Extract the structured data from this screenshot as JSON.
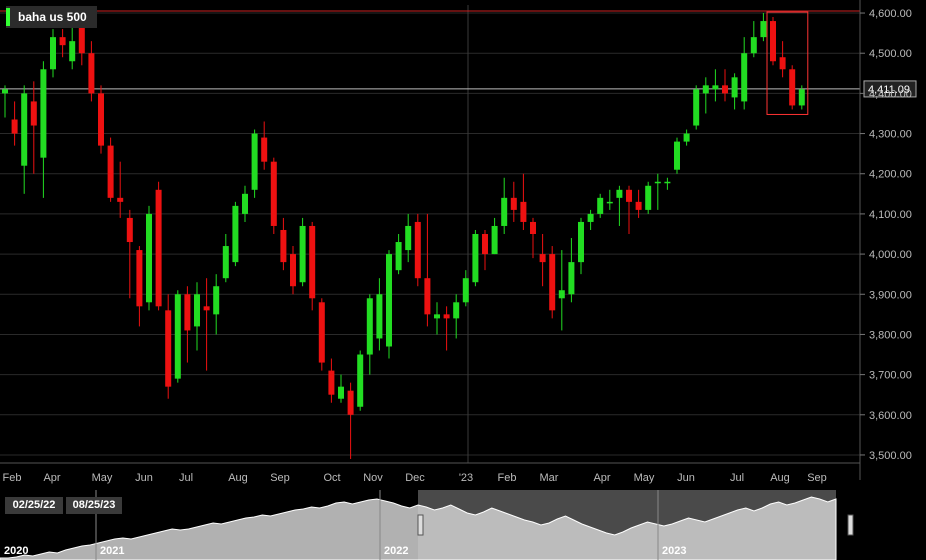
{
  "app": {
    "ticker": "baha us 500",
    "current_price_label": "4,411.09",
    "range_start": "02/25/22",
    "range_end": "08/25/23"
  },
  "colors": {
    "background": "#000000",
    "up": "#22dd22",
    "down": "#ee1111",
    "grid": "#2a2a2a",
    "axis_text": "#bbbbbb",
    "highlight_box": "#ff3333",
    "price_line_top": "#cc2222",
    "price_line_current": "#bbbbbb"
  },
  "chart_data": {
    "type": "candlestick",
    "ylim": [
      3480,
      4620
    ],
    "y_ticks": [
      "3,500.00",
      "3,600.00",
      "3,700.00",
      "3,800.00",
      "3,900.00",
      "4,000.00",
      "4,100.00",
      "4,200.00",
      "4,300.00",
      "4,400.00",
      "4,500.00",
      "4,600.00"
    ],
    "x_labels": [
      "Feb",
      "Apr",
      "May",
      "Jun",
      "Jul",
      "Aug",
      "Sep",
      "Oct",
      "Nov",
      "Dec",
      "'23",
      "Feb",
      "Mar",
      "Apr",
      "May",
      "Jun",
      "Jul",
      "Aug",
      "Sep"
    ],
    "top_line": 4605,
    "current": 4411.09,
    "highlight_range": [
      -4,
      -1
    ],
    "candles": [
      [
        4400,
        4410,
        4340,
        4420
      ],
      [
        4335,
        4300,
        4270,
        4380
      ],
      [
        4220,
        4400,
        4150,
        4420
      ],
      [
        4380,
        4320,
        4200,
        4430
      ],
      [
        4240,
        4460,
        4140,
        4480
      ],
      [
        4460,
        4540,
        4440,
        4560
      ],
      [
        4540,
        4520,
        4490,
        4560
      ],
      [
        4480,
        4530,
        4460,
        4590
      ],
      [
        4570,
        4500,
        4470,
        4590
      ],
      [
        4500,
        4400,
        4380,
        4530
      ],
      [
        4400,
        4270,
        4250,
        4420
      ],
      [
        4270,
        4140,
        4130,
        4290
      ],
      [
        4140,
        4130,
        4090,
        4230
      ],
      [
        4090,
        4030,
        3890,
        4110
      ],
      [
        4010,
        3870,
        3820,
        4020
      ],
      [
        3880,
        4100,
        3860,
        4120
      ],
      [
        4160,
        3870,
        3860,
        4180
      ],
      [
        3860,
        3670,
        3640,
        3900
      ],
      [
        3690,
        3900,
        3680,
        3910
      ],
      [
        3900,
        3810,
        3730,
        3920
      ],
      [
        3820,
        3900,
        3760,
        3930
      ],
      [
        3870,
        3860,
        3710,
        3940
      ],
      [
        3850,
        3920,
        3800,
        3950
      ],
      [
        3940,
        4020,
        3930,
        4050
      ],
      [
        3980,
        4120,
        3970,
        4130
      ],
      [
        4100,
        4150,
        4080,
        4170
      ],
      [
        4160,
        4300,
        4140,
        4310
      ],
      [
        4290,
        4230,
        4210,
        4330
      ],
      [
        4230,
        4070,
        4050,
        4240
      ],
      [
        4060,
        3980,
        3960,
        4090
      ],
      [
        4000,
        3920,
        3900,
        4020
      ],
      [
        3930,
        4070,
        3920,
        4090
      ],
      [
        4070,
        3890,
        3860,
        4080
      ],
      [
        3880,
        3730,
        3710,
        3890
      ],
      [
        3710,
        3650,
        3630,
        3740
      ],
      [
        3640,
        3670,
        3630,
        3700
      ],
      [
        3660,
        3600,
        3490,
        3680
      ],
      [
        3620,
        3750,
        3610,
        3760
      ],
      [
        3750,
        3890,
        3700,
        3900
      ],
      [
        3790,
        3900,
        3760,
        3940
      ],
      [
        3770,
        4000,
        3740,
        4010
      ],
      [
        3960,
        4030,
        3950,
        4050
      ],
      [
        4010,
        4070,
        3980,
        4100
      ],
      [
        4080,
        3940,
        3920,
        4100
      ],
      [
        3940,
        3850,
        3820,
        4100
      ],
      [
        3840,
        3850,
        3800,
        3880
      ],
      [
        3850,
        3840,
        3760,
        3870
      ],
      [
        3840,
        3880,
        3790,
        3900
      ],
      [
        3880,
        3940,
        3870,
        3960
      ],
      [
        3930,
        4050,
        3920,
        4060
      ],
      [
        4050,
        4000,
        3960,
        4060
      ],
      [
        4000,
        4070,
        4000,
        4090
      ],
      [
        4070,
        4140,
        4050,
        4190
      ],
      [
        4140,
        4110,
        4080,
        4180
      ],
      [
        4130,
        4080,
        4060,
        4200
      ],
      [
        4080,
        4050,
        3990,
        4090
      ],
      [
        4000,
        3980,
        3920,
        4050
      ],
      [
        4000,
        3860,
        3840,
        4020
      ],
      [
        3890,
        3910,
        3810,
        4010
      ],
      [
        3900,
        3980,
        3880,
        4040
      ],
      [
        3980,
        4080,
        3950,
        4090
      ],
      [
        4080,
        4100,
        4060,
        4110
      ],
      [
        4100,
        4140,
        4090,
        4150
      ],
      [
        4130,
        4130,
        4110,
        4160
      ],
      [
        4140,
        4160,
        4070,
        4170
      ],
      [
        4160,
        4130,
        4050,
        4170
      ],
      [
        4130,
        4110,
        4090,
        4160
      ],
      [
        4110,
        4170,
        4100,
        4180
      ],
      [
        4180,
        4180,
        4110,
        4200
      ],
      [
        4180,
        4180,
        4160,
        4190
      ],
      [
        4210,
        4280,
        4200,
        4290
      ],
      [
        4280,
        4300,
        4270,
        4310
      ],
      [
        4320,
        4410,
        4310,
        4420
      ],
      [
        4400,
        4420,
        4350,
        4440
      ],
      [
        4410,
        4420,
        4380,
        4460
      ],
      [
        4420,
        4400,
        4380,
        4460
      ],
      [
        4390,
        4440,
        4360,
        4450
      ],
      [
        4380,
        4500,
        4360,
        4540
      ],
      [
        4500,
        4540,
        4490,
        4580
      ],
      [
        4540,
        4580,
        4530,
        4600
      ],
      [
        4580,
        4480,
        4470,
        4590
      ],
      [
        4490,
        4460,
        4440,
        4530
      ],
      [
        4460,
        4370,
        4360,
        4470
      ],
      [
        4370,
        4410,
        4360,
        4420
      ]
    ]
  },
  "overview": {
    "year_labels": [
      "2020",
      "2021",
      "2022",
      "2023"
    ],
    "values": [
      2,
      2,
      3,
      5,
      4,
      6,
      8,
      7,
      10,
      12,
      14,
      15,
      17,
      19,
      21,
      22,
      21,
      23,
      25,
      27,
      29,
      31,
      30,
      31,
      33,
      35,
      37,
      36,
      38,
      40,
      42,
      43,
      45,
      44,
      46,
      48,
      50,
      51,
      53,
      52,
      54,
      57,
      58,
      56,
      58,
      60,
      61,
      59,
      57,
      54,
      52,
      55,
      53,
      50,
      52,
      55,
      51,
      47,
      45,
      48,
      52,
      49,
      46,
      43,
      40,
      38,
      35,
      37,
      41,
      44,
      40,
      36,
      33,
      30,
      27,
      25,
      28,
      32,
      35,
      38,
      36,
      34,
      36,
      39,
      42,
      40,
      38,
      41,
      44,
      47,
      50,
      52,
      49,
      52,
      56,
      58,
      55,
      57,
      60,
      63,
      61,
      58,
      61
    ]
  }
}
